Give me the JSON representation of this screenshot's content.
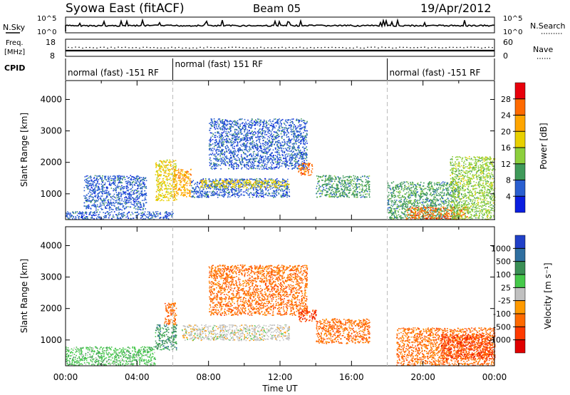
{
  "header": {
    "station": "Syowa East (fitACF)",
    "beam": "Beam 05",
    "date": "19/Apr/2012"
  },
  "noise_panel": {
    "left_label": "N.Sky",
    "left_ticks": [
      "10^5",
      "10^0"
    ],
    "right_label": "N.Search",
    "right_ticks": [
      "10^5",
      "10^0"
    ]
  },
  "freq_panel": {
    "left_label_1": "Freq.",
    "left_label_2": "[MHz]",
    "left_ticks": [
      "18",
      "8"
    ],
    "right_label": "Nave",
    "right_ticks": [
      "60",
      "0"
    ]
  },
  "cpid": {
    "label": "CPID",
    "segments": [
      {
        "start_h": 0,
        "end_h": 6,
        "label": "normal (fast) -151 RF"
      },
      {
        "start_h": 6,
        "end_h": 18,
        "label": "normal (fast) 151 RF"
      },
      {
        "start_h": 18,
        "end_h": 24,
        "label": "normal (fast) -151 RF"
      }
    ]
  },
  "power_panel": {
    "ylabel": "Slant Range [km]",
    "colorbar_label": "Power [dB]",
    "colorbar_ticks": [
      "28",
      "24",
      "20",
      "16",
      "12",
      "8",
      "4"
    ],
    "colorbar_colors": [
      "#e8000b",
      "#ff6a00",
      "#ffa500",
      "#e8d000",
      "#8ccf3c",
      "#3f9a5a",
      "#2a5fd0",
      "#0a1ee0"
    ]
  },
  "velocity_panel": {
    "ylabel": "Slant Range [km]",
    "colorbar_label": "Velocity [m s⁻¹]",
    "colorbar_ticks": [
      "1000",
      "500",
      "100",
      "25",
      "-25",
      "-100",
      "-500",
      "-1000"
    ],
    "colorbar_colors": [
      "#2040c8",
      "#2f6fa0",
      "#3a8f55",
      "#45c84a",
      "#c0c0c0",
      "#ff9a00",
      "#ff6a00",
      "#ff3a00",
      "#e00000"
    ]
  },
  "xlabel": "Time UT",
  "chart_data": [
    {
      "type": "line",
      "title": "N.Sky / N.Search",
      "x_range_hours": [
        0,
        24
      ],
      "ylim": [
        "10^0",
        "10^5"
      ]
    },
    {
      "type": "scatter",
      "title": "Freq. / Nave",
      "x_range_hours": [
        0,
        24
      ],
      "y_left_ticks": [
        8,
        18
      ],
      "y_right_ticks": [
        0,
        60
      ]
    },
    {
      "type": "heatmap",
      "title": "Power [dB]",
      "xlabel": "Time UT",
      "ylabel": "Slant Range [km]",
      "x_ticks": [
        "00:00",
        "04:00",
        "08:00",
        "12:00",
        "16:00",
        "20:00",
        "00:00"
      ],
      "xlim_hours": [
        0,
        24
      ],
      "y_ticks": [
        1000,
        2000,
        3000,
        4000
      ],
      "ylim": [
        180,
        4600
      ],
      "value_levels": [
        4,
        8,
        12,
        16,
        20,
        24,
        28
      ],
      "regions": [
        {
          "t0": 0.0,
          "t1": 6.0,
          "r0": 200,
          "r1": 450,
          "level": 1
        },
        {
          "t0": 1.0,
          "t1": 4.5,
          "r0": 500,
          "r1": 1600,
          "level": 1
        },
        {
          "t0": 5.0,
          "t1": 6.2,
          "r0": 800,
          "r1": 2100,
          "level": 4
        },
        {
          "t0": 6.0,
          "t1": 7.0,
          "r0": 900,
          "r1": 1800,
          "level": 5
        },
        {
          "t0": 7.0,
          "t1": 12.5,
          "r0": 900,
          "r1": 1500,
          "level": 1
        },
        {
          "t0": 7.5,
          "t1": 12.5,
          "r0": 1200,
          "r1": 1450,
          "level": 4
        },
        {
          "t0": 8.0,
          "t1": 13.5,
          "r0": 1800,
          "r1": 3400,
          "level": 1
        },
        {
          "t0": 13.0,
          "t1": 13.8,
          "r0": 1600,
          "r1": 2000,
          "level": 6
        },
        {
          "t0": 14.0,
          "t1": 17.0,
          "r0": 900,
          "r1": 1600,
          "level": 2
        },
        {
          "t0": 18.0,
          "t1": 22.0,
          "r0": 200,
          "r1": 1400,
          "level": 2
        },
        {
          "t0": 19.0,
          "t1": 22.5,
          "r0": 200,
          "r1": 600,
          "level": 6
        },
        {
          "t0": 21.5,
          "t1": 24.0,
          "r0": 200,
          "r1": 2200,
          "level": 3
        }
      ]
    },
    {
      "type": "heatmap",
      "title": "Velocity [m s^-1]",
      "xlabel": "Time UT",
      "ylabel": "Slant Range [km]",
      "x_ticks": [
        "00:00",
        "04:00",
        "08:00",
        "12:00",
        "16:00",
        "20:00",
        "00:00"
      ],
      "xlim_hours": [
        0,
        24
      ],
      "y_ticks": [
        1000,
        2000,
        3000,
        4000
      ],
      "ylim": [
        180,
        4600
      ],
      "value_levels": [
        1000,
        500,
        100,
        25,
        -25,
        -100,
        -500,
        -1000
      ],
      "regions": [
        {
          "t0": 0.0,
          "t1": 5.0,
          "r0": 200,
          "r1": 800,
          "level": 5
        },
        {
          "t0": 5.0,
          "t1": 6.2,
          "r0": 700,
          "r1": 1500,
          "level": 6
        },
        {
          "t0": 5.5,
          "t1": 6.2,
          "r0": 1500,
          "r1": 2200,
          "level": 2
        },
        {
          "t0": 6.5,
          "t1": 12.5,
          "r0": 1000,
          "r1": 1500,
          "level": 4
        },
        {
          "t0": 8.0,
          "t1": 13.5,
          "r0": 1800,
          "r1": 3400,
          "level": 2
        },
        {
          "t0": 13.0,
          "t1": 14.0,
          "r0": 1600,
          "r1": 2000,
          "level": 1
        },
        {
          "t0": 14.0,
          "t1": 17.0,
          "r0": 900,
          "r1": 1700,
          "level": 2
        },
        {
          "t0": 18.5,
          "t1": 24.0,
          "r0": 200,
          "r1": 1400,
          "level": 2
        },
        {
          "t0": 21.0,
          "t1": 24.0,
          "r0": 400,
          "r1": 1200,
          "level": 1
        }
      ]
    }
  ]
}
